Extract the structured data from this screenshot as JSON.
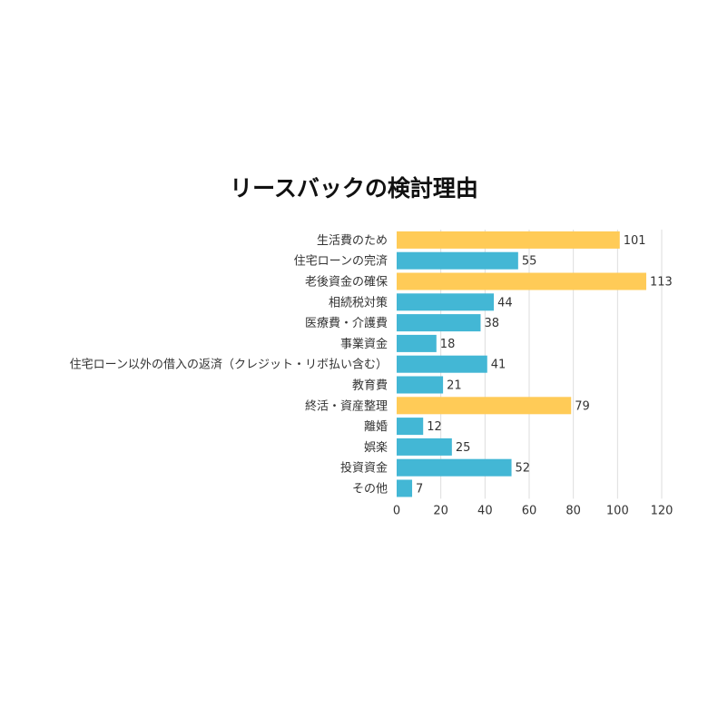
{
  "chart_data": {
    "type": "bar",
    "orientation": "horizontal",
    "title": "リースバックの検討理由",
    "categories": [
      "生活費のため",
      "住宅ローンの完済",
      "老後資金の確保",
      "相続税対策",
      "医療費・介護費",
      "事業資金",
      "住宅ローン以外の借入の返済（クレジット・リボ払い含む）",
      "教育費",
      "終活・資産整理",
      "離婚",
      "娯楽",
      "投資資金",
      "その他"
    ],
    "values": [
      101,
      55,
      113,
      44,
      38,
      18,
      41,
      21,
      79,
      12,
      25,
      52,
      7
    ],
    "highlighted": [
      true,
      false,
      true,
      false,
      false,
      false,
      false,
      false,
      true,
      false,
      false,
      false,
      false
    ],
    "xlim": [
      0,
      120
    ],
    "xticks": [
      0,
      20,
      40,
      60,
      80,
      100,
      120
    ],
    "grid": true,
    "legend": "none",
    "colors": {
      "highlight": "#FFCB57",
      "default": "#43B7D5",
      "grid": "#DDDDDD"
    }
  }
}
